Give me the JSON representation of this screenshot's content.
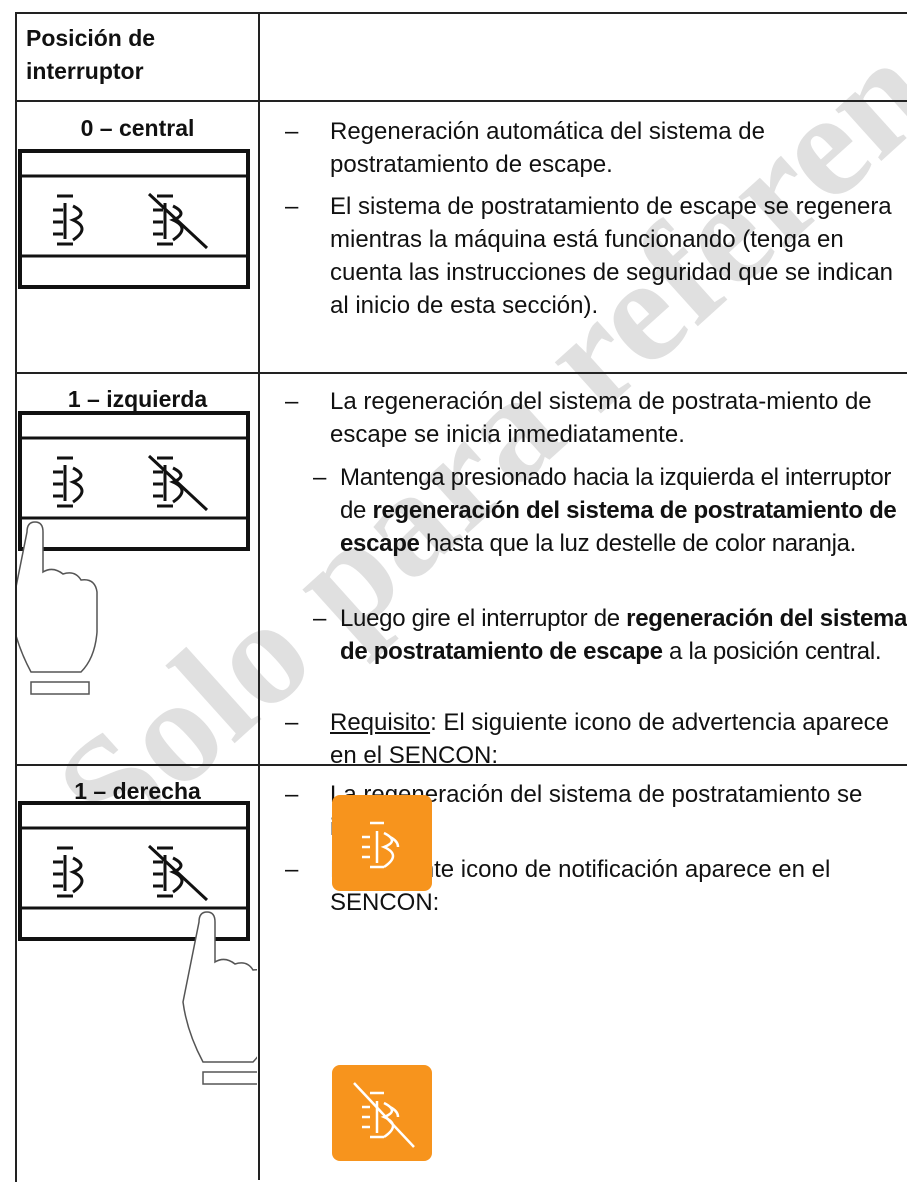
{
  "watermark": "Solo para referencia",
  "bullet": "–",
  "table": {
    "header": "Posición de interruptor",
    "rows": [
      {
        "position": "0 – central",
        "items": [
          "Regeneración automática del sistema de postratamiento de escape.",
          "El sistema de postratamiento de escape se regenera mientras la máquina está funcionando (tenga en cuenta las instrucciones de seguridad que se indican al inicio de esta sección)."
        ]
      },
      {
        "position": "1 – izquierda",
        "items": [
          "La regeneración del sistema de postrata-miento de escape se inicia inmediatamente.",
          [
            "Requisito",
            ": El siguiente icono de advertencia aparece en el SENCON:"
          ]
        ],
        "sub": [
          [
            "Mantenga presionado hacia la izquierda el interruptor de ",
            "regeneración del sistema de postratamiento de escape",
            " hasta que la luz destelle de color naranja."
          ],
          [
            "Luego gire el interruptor de ",
            "regeneración del sistema de postratamiento de escape",
            " a la posición central."
          ]
        ]
      },
      {
        "position": "1 – derecha",
        "items": [
          "La regeneración del sistema de postratamiento se inhabilita.",
          "El siguiente icono de notificación aparece en el SENCON:"
        ]
      }
    ]
  }
}
